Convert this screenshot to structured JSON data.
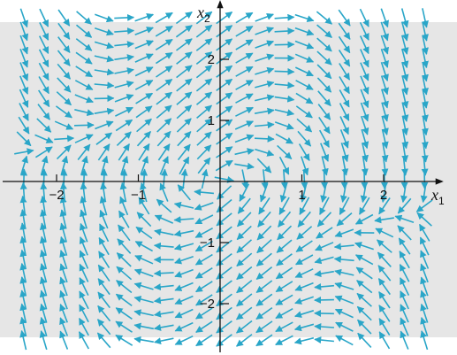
{
  "figure": {
    "background": "#e6e6e6",
    "arrow_color": "#2aa6c8",
    "axis_color": "#111111"
  },
  "axes": {
    "x_label": {
      "main": "x",
      "sub": "1"
    },
    "y_label": {
      "main": "x",
      "sub": "2"
    },
    "x_range": [
      -2.5,
      2.6
    ],
    "y_range": [
      -2.7,
      2.8
    ],
    "x_ticks": [
      {
        "value": -2,
        "label": "−2"
      },
      {
        "value": -1,
        "label": "−1"
      },
      {
        "value": 1,
        "label": "1"
      },
      {
        "value": 2,
        "label": "2"
      }
    ],
    "y_ticks": [
      {
        "value": 2,
        "label": "2"
      },
      {
        "value": 1,
        "label": "1"
      },
      {
        "value": -1,
        "label": "−1"
      },
      {
        "value": -2,
        "label": "−2"
      }
    ]
  },
  "vector_field": {
    "dx1_dt": "x2",
    "dx2_dt": "-x1 + (1 - x1^2) * x2",
    "x1_grid": {
      "start": -2.4,
      "stop": 2.5,
      "step": 0.245
    },
    "x2_grid": {
      "start": -2.6,
      "stop": 2.7,
      "step": 0.22
    },
    "arrow_style": "unit-length"
  }
}
